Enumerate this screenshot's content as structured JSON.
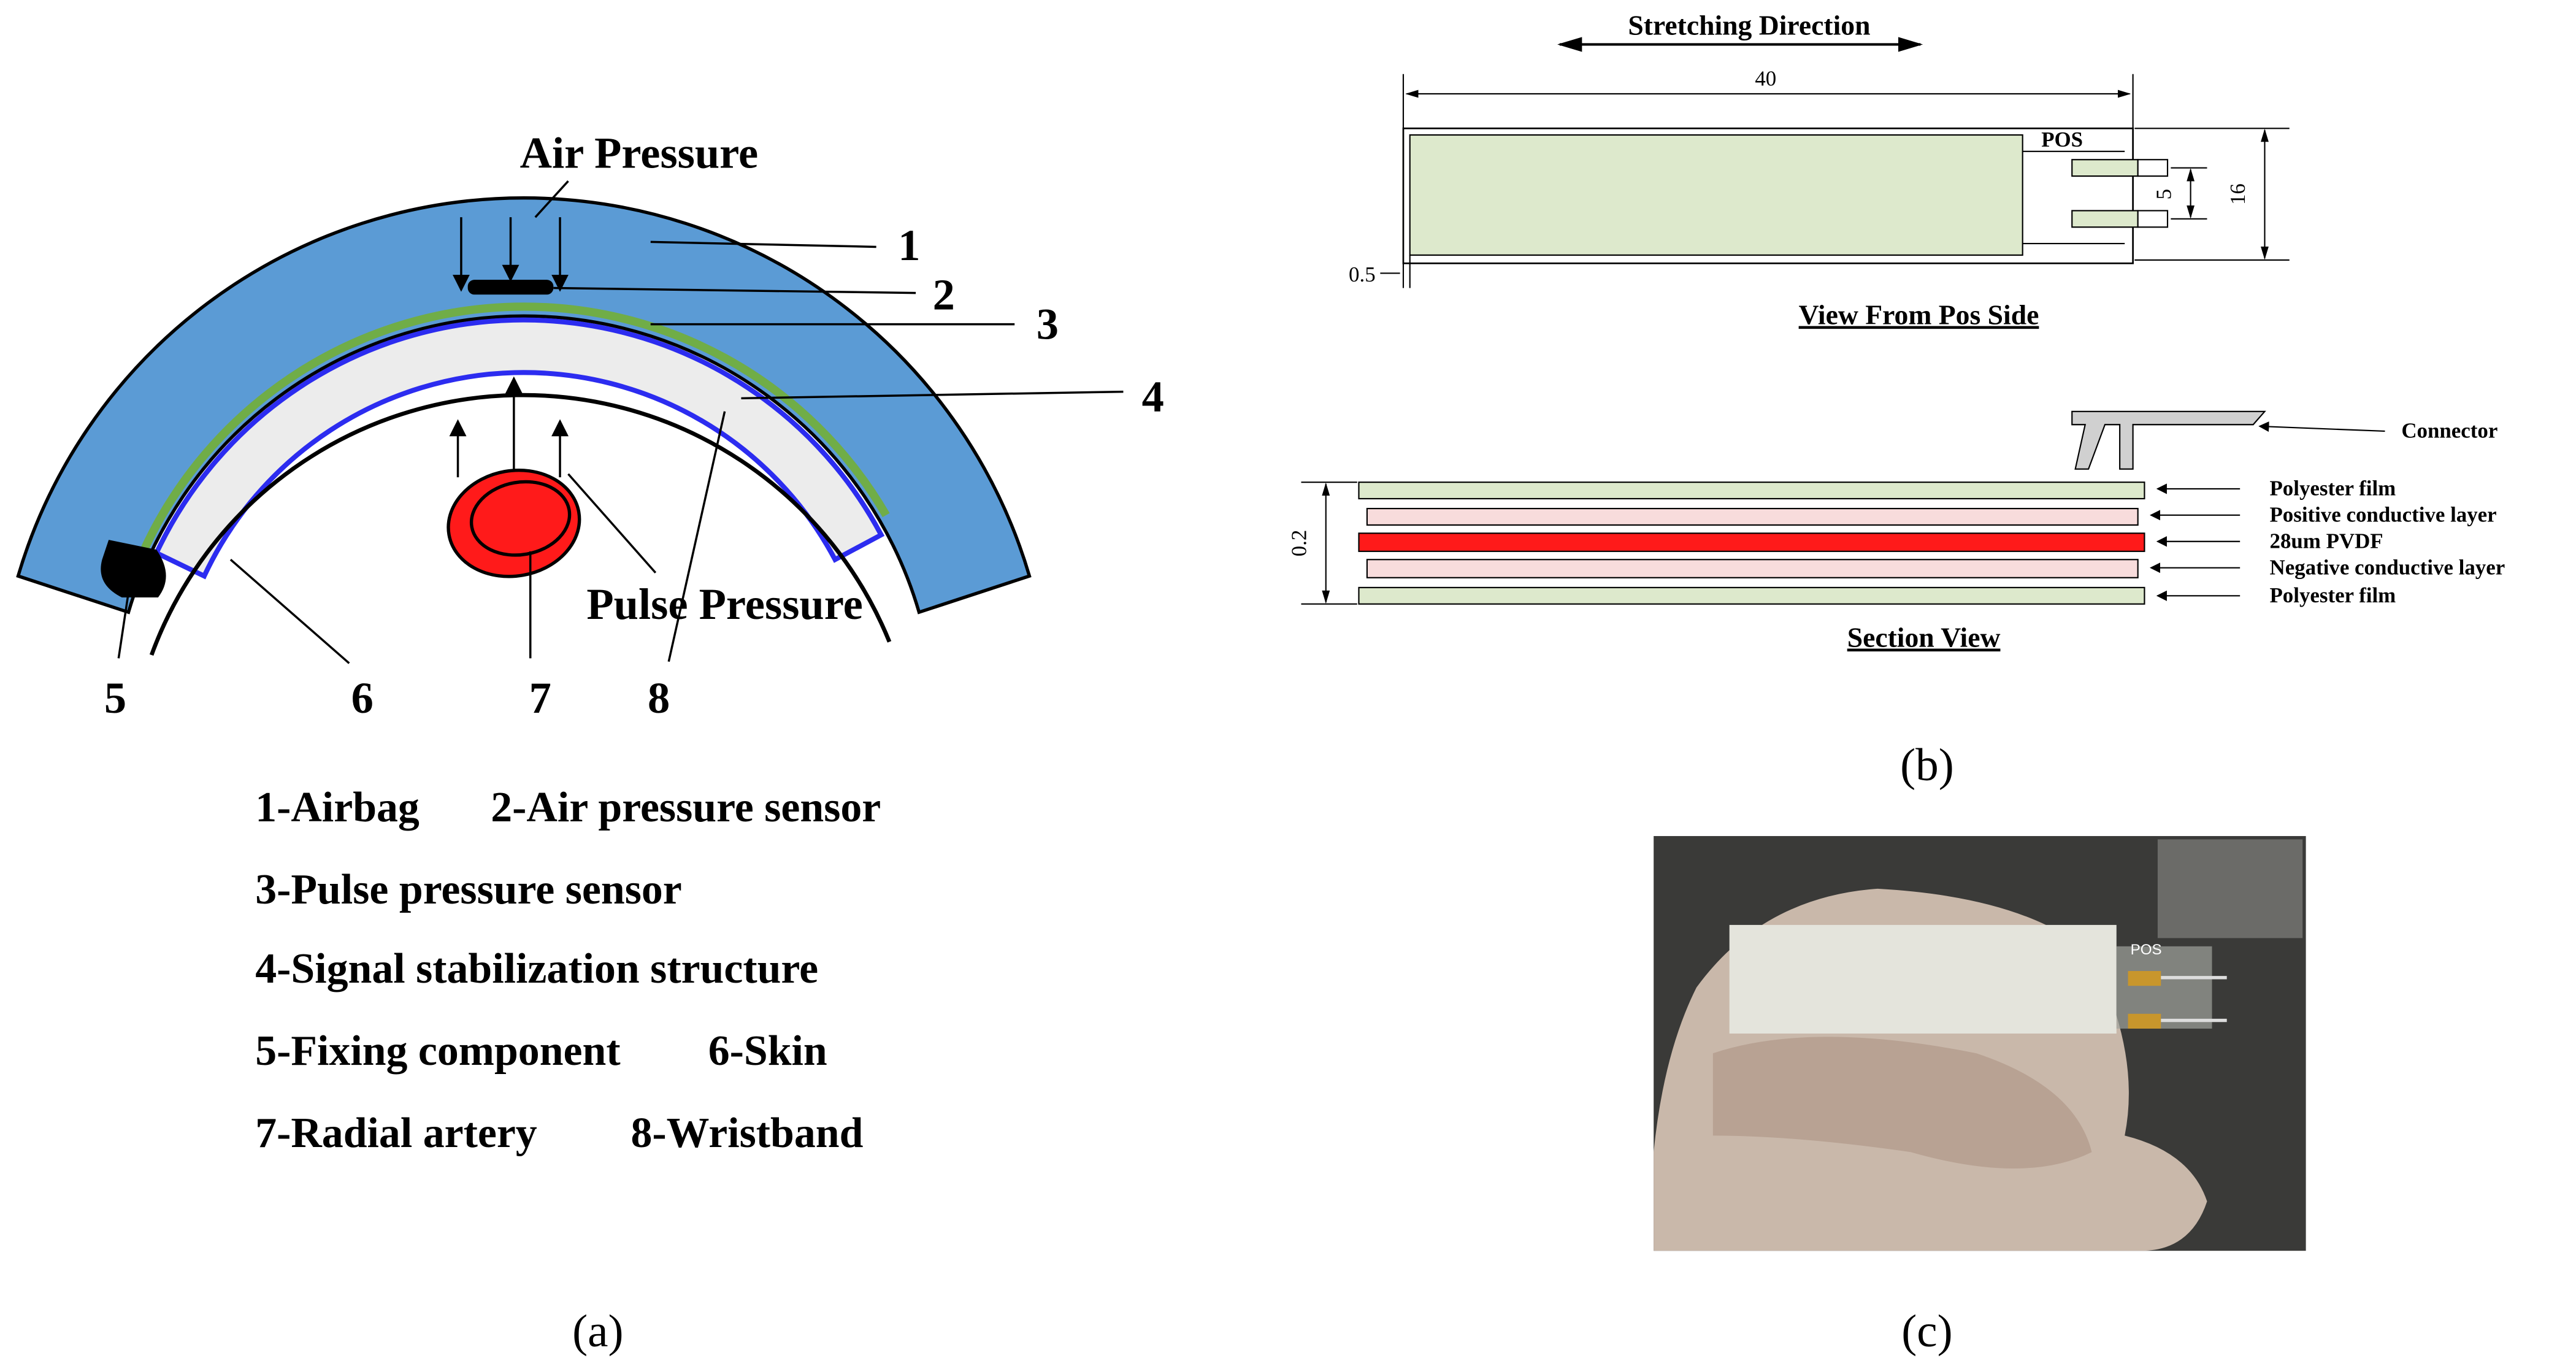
{
  "panel_a": {
    "air_pressure": "Air Pressure",
    "pulse_pressure": "Pulse Pressure",
    "markers": [
      "1",
      "2",
      "3",
      "4",
      "5",
      "6",
      "7",
      "8"
    ],
    "legend": [
      [
        "1-Airbag",
        "2-Air pressure sensor"
      ],
      [
        "3-Pulse pressure sensor"
      ],
      [
        "4-Signal stabilization structure"
      ],
      [
        "5-Fixing component",
        "6-Skin"
      ],
      [
        "7-Radial artery",
        "8-Wristband"
      ]
    ],
    "caption": "(a)"
  },
  "panel_b": {
    "stretching_direction": "Stretching Direction",
    "length": "40",
    "pos": "POS",
    "pin_spacing": "5",
    "width": "16",
    "margin": "0.5",
    "top_view_title": "View From Pos Side",
    "connector": "Connector",
    "layers": [
      "Polyester film",
      "Positive conductive layer",
      "28um PVDF",
      "Negative conductive layer",
      "Polyester film"
    ],
    "thickness": "0.2",
    "section_title": "Section View",
    "caption": "(b)"
  },
  "panel_c": {
    "pos": "POS",
    "caption": "(c)"
  }
}
